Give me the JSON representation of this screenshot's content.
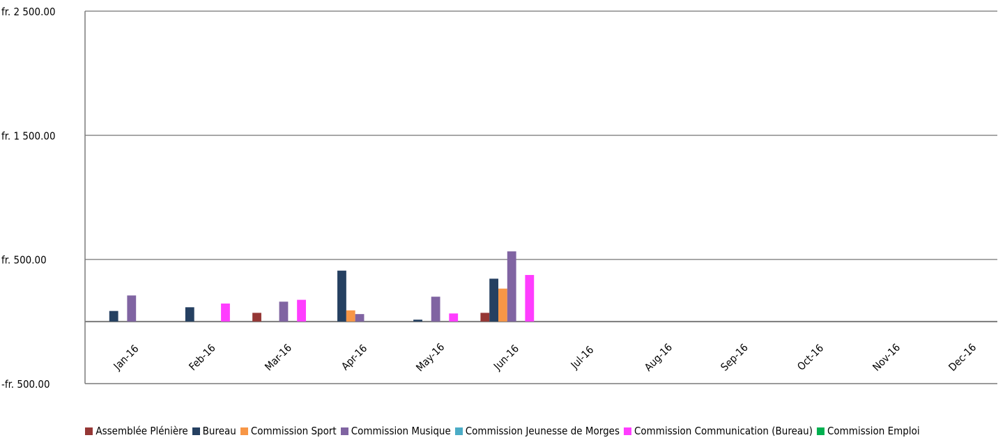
{
  "chart_data": {
    "type": "bar",
    "title": "",
    "xlabel": "",
    "ylabel": "",
    "ylim": [
      -500,
      2500
    ],
    "yticks": [
      -500,
      0,
      500,
      1500,
      2500
    ],
    "ytick_labels": [
      "-fr.  500.00",
      "",
      "fr.  500.00",
      "fr. 1 500.00",
      "fr. 2 500.00"
    ],
    "grid": true,
    "legend_position": "bottom",
    "categories": [
      "Jan-16",
      "Feb-16",
      "Mar-16",
      "Apr-16",
      "May-16",
      "Jun-16",
      "Jul-16",
      "Aug-16",
      "Sep-16",
      "Oct-16",
      "Nov-16",
      "Dec-16"
    ],
    "series": [
      {
        "name": "Assemblée Plénière",
        "color": "#953735",
        "values": [
          0,
          0,
          70,
          0,
          0,
          70,
          0,
          0,
          0,
          0,
          0,
          0
        ]
      },
      {
        "name": "Bureau",
        "color": "#254061",
        "values": [
          85,
          115,
          0,
          410,
          15,
          345,
          0,
          0,
          0,
          0,
          0,
          0
        ]
      },
      {
        "name": "Commission Sport",
        "color": "#F79646",
        "values": [
          0,
          0,
          0,
          90,
          0,
          265,
          0,
          0,
          0,
          0,
          0,
          0
        ]
      },
      {
        "name": "Commission Musique",
        "color": "#8064A2",
        "values": [
          210,
          0,
          160,
          60,
          200,
          565,
          0,
          0,
          0,
          0,
          0,
          0
        ]
      },
      {
        "name": "Commission Jeunesse de Morges",
        "color": "#4BACC6",
        "values": [
          0,
          0,
          0,
          0,
          0,
          0,
          0,
          0,
          0,
          0,
          0,
          0
        ]
      },
      {
        "name": "Commission Communication (Bureau)",
        "color": "#FF3DFF",
        "values": [
          0,
          145,
          175,
          0,
          65,
          375,
          0,
          0,
          0,
          0,
          0,
          0
        ]
      },
      {
        "name": "Commission Emploi",
        "color": "#00B050",
        "values": [
          0,
          0,
          0,
          0,
          0,
          0,
          0,
          0,
          0,
          0,
          0,
          0
        ]
      }
    ]
  }
}
